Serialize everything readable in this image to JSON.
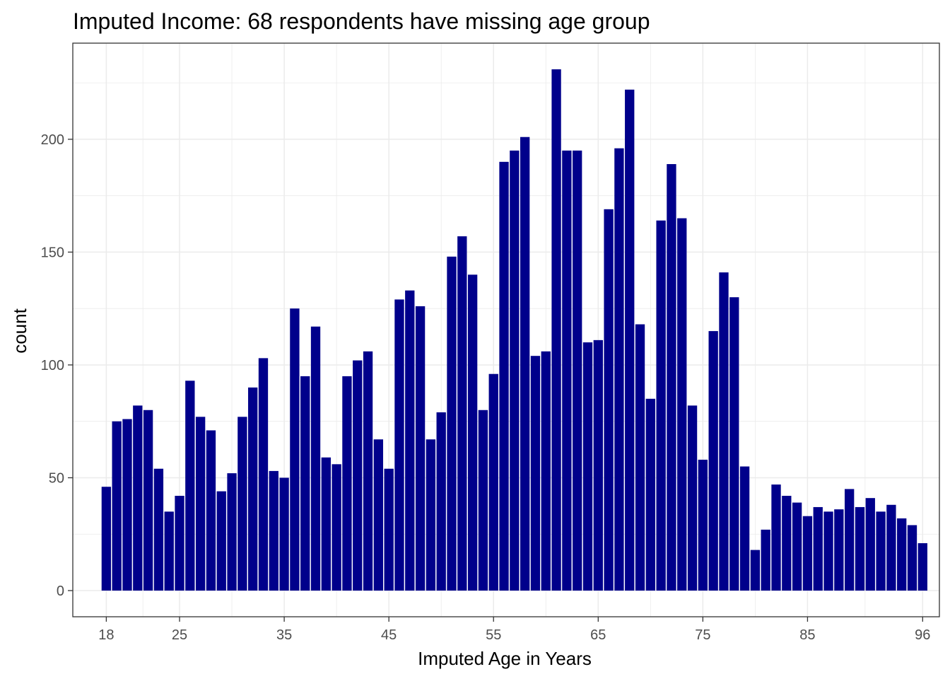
{
  "chart_data": {
    "type": "bar",
    "title": "Imputed Income: 68 respondents have missing age group",
    "xlabel": "Imputed Age in Years",
    "ylabel": "count",
    "x": [
      18,
      19,
      20,
      21,
      22,
      23,
      24,
      25,
      26,
      27,
      28,
      29,
      30,
      31,
      32,
      33,
      34,
      35,
      36,
      37,
      38,
      39,
      40,
      41,
      42,
      43,
      44,
      45,
      46,
      47,
      48,
      49,
      50,
      51,
      52,
      53,
      54,
      55,
      56,
      57,
      58,
      59,
      60,
      61,
      62,
      63,
      64,
      65,
      66,
      67,
      68,
      69,
      70,
      71,
      72,
      73,
      74,
      75,
      76,
      77,
      78,
      79,
      80,
      81,
      82,
      83,
      84,
      85,
      86,
      87,
      88,
      89,
      90,
      91,
      92,
      93,
      94,
      95,
      96
    ],
    "values": [
      46,
      75,
      76,
      82,
      80,
      54,
      35,
      42,
      93,
      77,
      71,
      44,
      52,
      77,
      90,
      103,
      53,
      50,
      125,
      95,
      117,
      59,
      56,
      95,
      102,
      106,
      67,
      54,
      129,
      133,
      126,
      67,
      79,
      148,
      157,
      140,
      80,
      96,
      190,
      195,
      201,
      104,
      106,
      231,
      195,
      195,
      110,
      111,
      169,
      196,
      222,
      118,
      85,
      164,
      189,
      165,
      82,
      58,
      115,
      141,
      130,
      55,
      18,
      27,
      47,
      42,
      39,
      33,
      37,
      35,
      36,
      45,
      37,
      41,
      35,
      38,
      32,
      29,
      21
    ],
    "x_ticks": [
      "18",
      "25",
      "35",
      "45",
      "55",
      "65",
      "75",
      "85",
      "96"
    ],
    "y_ticks": [
      "0",
      "50",
      "100",
      "150",
      "200"
    ],
    "xlim": [
      14.8,
      97.6
    ],
    "ylim": [
      -11.6,
      242.6
    ],
    "bar_color": "#00008B",
    "grid": true,
    "panel_border_color": "#333333",
    "grid_color": "#ebebeb"
  }
}
